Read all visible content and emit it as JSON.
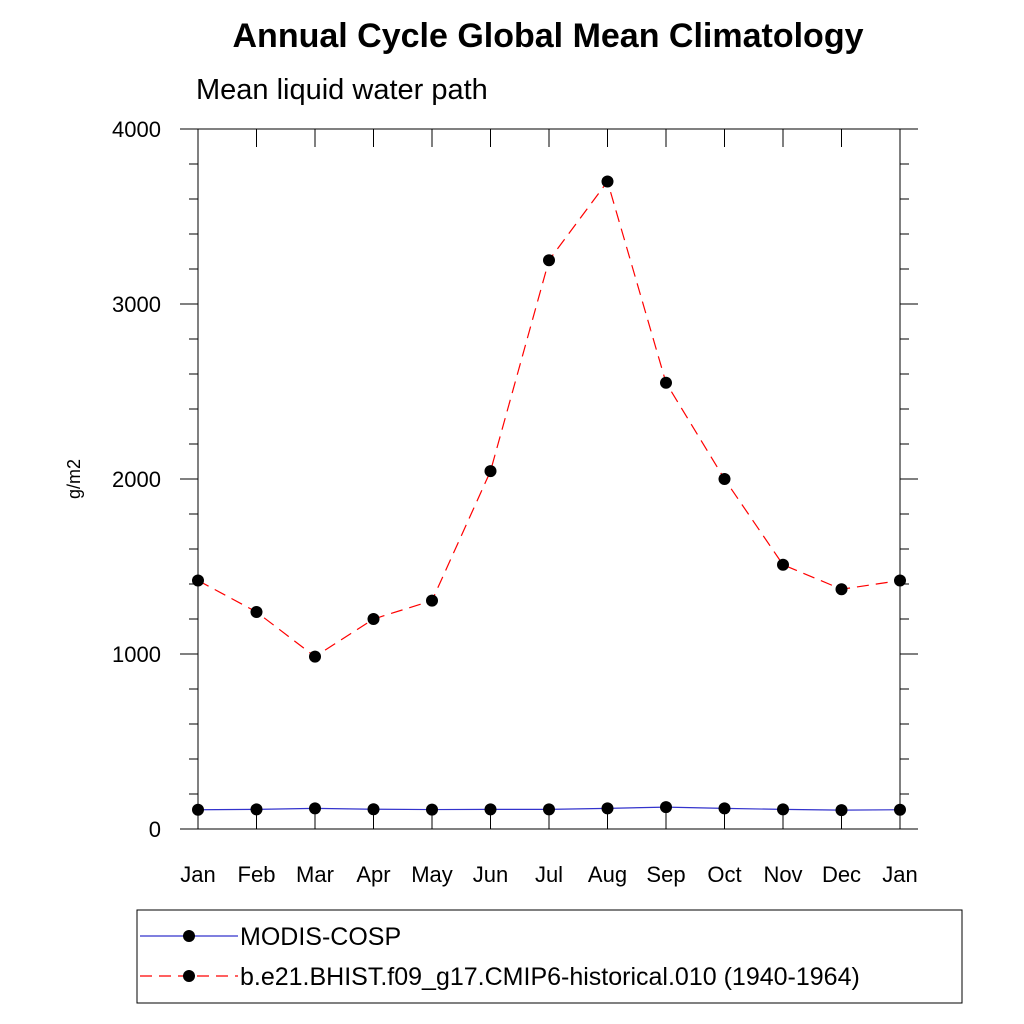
{
  "chart_data": {
    "type": "line",
    "title": "Annual Cycle Global Mean Climatology",
    "subtitle": "Mean liquid water path",
    "xlabel": "",
    "ylabel": "g/m2",
    "categories": [
      "Jan",
      "Feb",
      "Mar",
      "Apr",
      "May",
      "Jun",
      "Jul",
      "Aug",
      "Sep",
      "Oct",
      "Nov",
      "Dec",
      "Jan"
    ],
    "ylim": [
      0,
      4000
    ],
    "yticks": [
      0,
      1000,
      2000,
      3000,
      4000
    ],
    "grid": false,
    "legend_position": "bottom",
    "series": [
      {
        "name": "MODIS-COSP",
        "color": "#3333cc",
        "line_style": "solid",
        "marker": "filled-circle",
        "values": [
          110,
          112,
          118,
          113,
          111,
          112,
          112,
          118,
          125,
          118,
          112,
          108,
          110
        ]
      },
      {
        "name": "b.e21.BHIST.f09_g17.CMIP6-historical.010 (1940-1964)",
        "color": "#ff0000",
        "line_style": "dashed",
        "marker": "filled-circle",
        "values": [
          1420,
          1240,
          985,
          1200,
          1305,
          2045,
          3250,
          3700,
          2550,
          2000,
          1510,
          1370,
          1420
        ]
      }
    ]
  }
}
